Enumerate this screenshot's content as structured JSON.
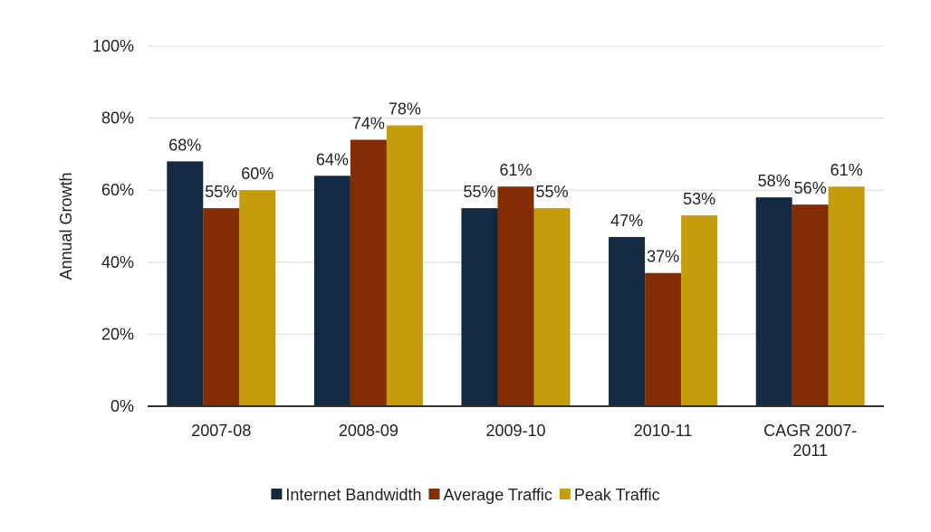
{
  "chart_data": {
    "type": "bar",
    "ylabel": "Annual Growth",
    "ylim": [
      0,
      100
    ],
    "yticks": [
      "0%",
      "20%",
      "40%",
      "60%",
      "80%",
      "100%"
    ],
    "ytick_values": [
      0,
      20,
      40,
      60,
      80,
      100
    ],
    "categories": [
      [
        "2007-08"
      ],
      [
        "2008-09"
      ],
      [
        "2009-10"
      ],
      [
        "2010-11"
      ],
      [
        "CAGR 2007-",
        "2011"
      ]
    ],
    "series": [
      {
        "name": "Internet Bandwidth",
        "color": "#13293f",
        "values": [
          68,
          64,
          55,
          47,
          58
        ],
        "labels": [
          "68%",
          "64%",
          "55%",
          "47%",
          "58%"
        ]
      },
      {
        "name": "Average Traffic",
        "color": "#842d04",
        "values": [
          55,
          74,
          61,
          37,
          56
        ],
        "labels": [
          "55%",
          "74%",
          "61%",
          "37%",
          "56%"
        ]
      },
      {
        "name": "Peak Traffic",
        "color": "#c59d0a",
        "values": [
          60,
          78,
          55,
          53,
          61
        ],
        "labels": [
          "60%",
          "78%",
          "55%",
          "53%",
          "61%"
        ]
      }
    ],
    "grid": true,
    "legend_position": "bottom"
  }
}
